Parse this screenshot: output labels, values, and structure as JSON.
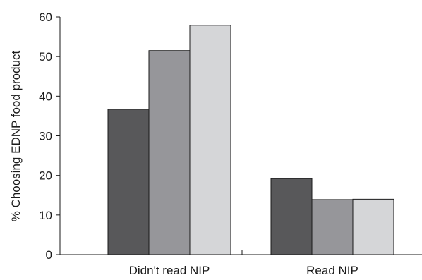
{
  "chart_data": {
    "type": "bar",
    "ylabel": "% Choosing EDNP food product",
    "xlabel": "",
    "ylim": [
      0,
      60
    ],
    "yticks": [
      0,
      10,
      20,
      30,
      40,
      50,
      60
    ],
    "grid": false,
    "legend": "none",
    "categories": [
      "Didn't read NIP",
      "Read NIP"
    ],
    "series": [
      {
        "values": [
          36.7,
          19.2
        ],
        "color": "#58585a"
      },
      {
        "values": [
          51.5,
          13.9
        ],
        "color": "#96969a"
      },
      {
        "values": [
          57.9,
          14.0
        ],
        "color": "#d5d6d8"
      }
    ]
  }
}
